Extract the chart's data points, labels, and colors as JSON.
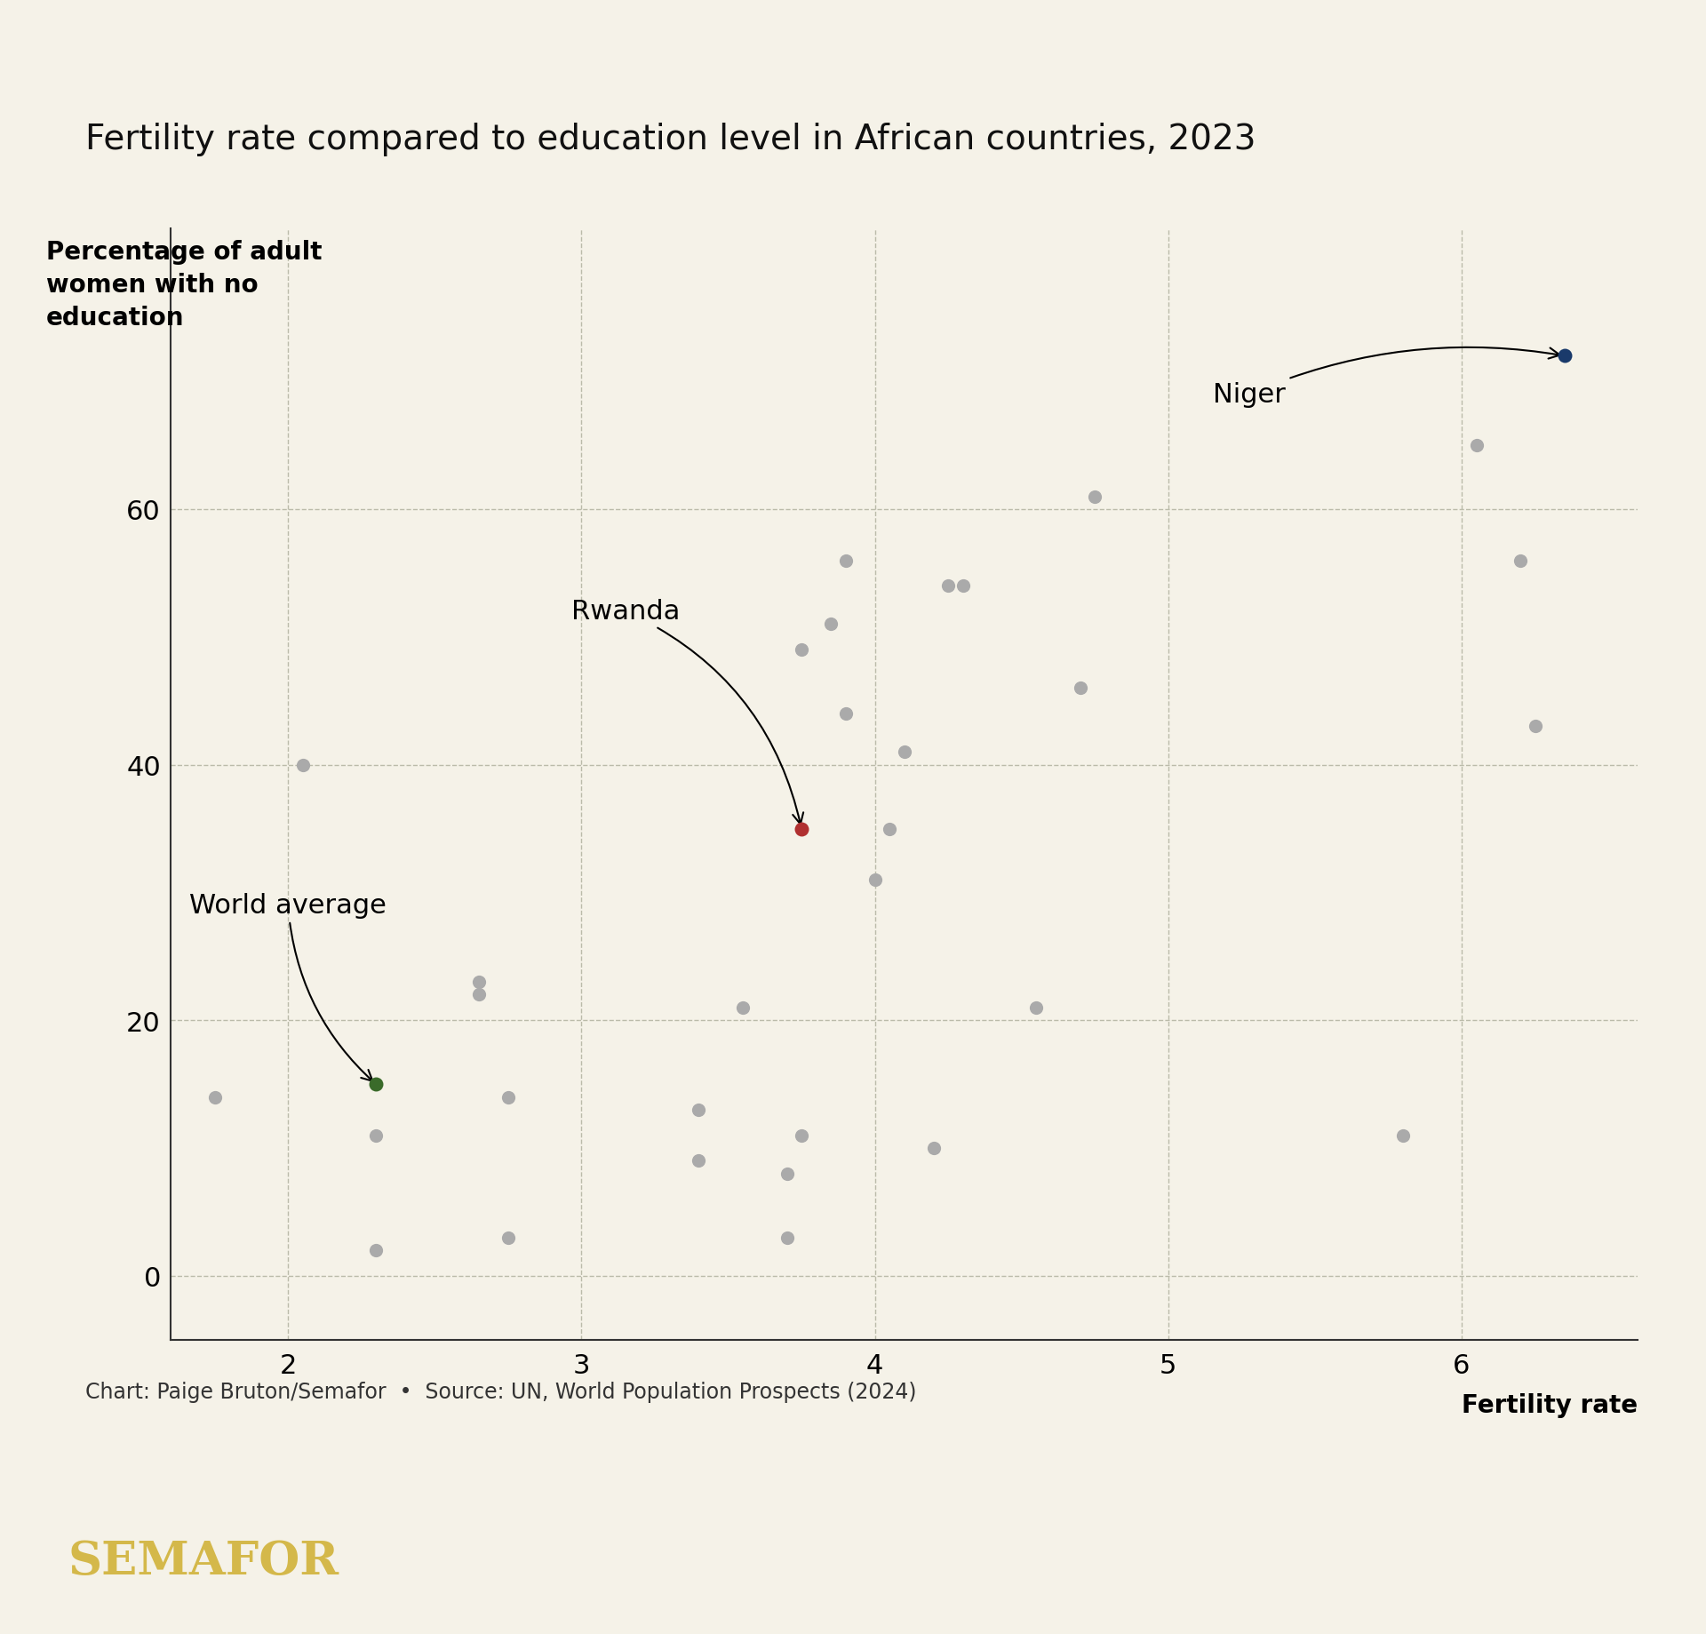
{
  "title": "Fertility rate compared to education level in African countries, 2023",
  "xlabel": "Fertility rate",
  "ylabel": "Percentage of adult\nwomen with no\neducation",
  "background_color": "#f5f2e8",
  "title_fontsize": 28,
  "axis_label_fontsize": 20,
  "source_text": "Chart: Paige Bruton/Semafor  •  Source: UN, World Population Prospects (2024)",
  "xlim": [
    1.6,
    6.6
  ],
  "ylim": [
    -5,
    82
  ],
  "xticks": [
    2,
    3,
    4,
    5,
    6
  ],
  "yticks": [
    0,
    20,
    40,
    60
  ],
  "gray_points": [
    [
      1.75,
      14
    ],
    [
      2.05,
      40
    ],
    [
      2.3,
      2
    ],
    [
      2.3,
      11
    ],
    [
      2.65,
      23
    ],
    [
      2.65,
      22
    ],
    [
      2.75,
      3
    ],
    [
      2.75,
      14
    ],
    [
      3.4,
      9
    ],
    [
      3.4,
      13
    ],
    [
      3.55,
      21
    ],
    [
      3.7,
      3
    ],
    [
      3.7,
      8
    ],
    [
      3.75,
      11
    ],
    [
      3.75,
      49
    ],
    [
      3.85,
      51
    ],
    [
      3.9,
      56
    ],
    [
      3.9,
      44
    ],
    [
      4.0,
      31
    ],
    [
      4.05,
      35
    ],
    [
      4.1,
      41
    ],
    [
      4.2,
      10
    ],
    [
      4.25,
      54
    ],
    [
      4.3,
      54
    ],
    [
      4.55,
      21
    ],
    [
      4.7,
      46
    ],
    [
      4.75,
      61
    ],
    [
      5.8,
      11
    ],
    [
      6.05,
      65
    ],
    [
      6.2,
      56
    ],
    [
      6.25,
      43
    ]
  ],
  "niger_point": [
    6.35,
    72
  ],
  "rwanda_point": [
    3.75,
    35
  ],
  "world_avg_point": [
    2.3,
    15
  ],
  "niger_color": "#1a3a6b",
  "rwanda_color": "#b03030",
  "world_avg_color": "#3a6b2a",
  "point_size": 120,
  "semafor_bg": "#111111",
  "semafor_text": "#d4b84a"
}
